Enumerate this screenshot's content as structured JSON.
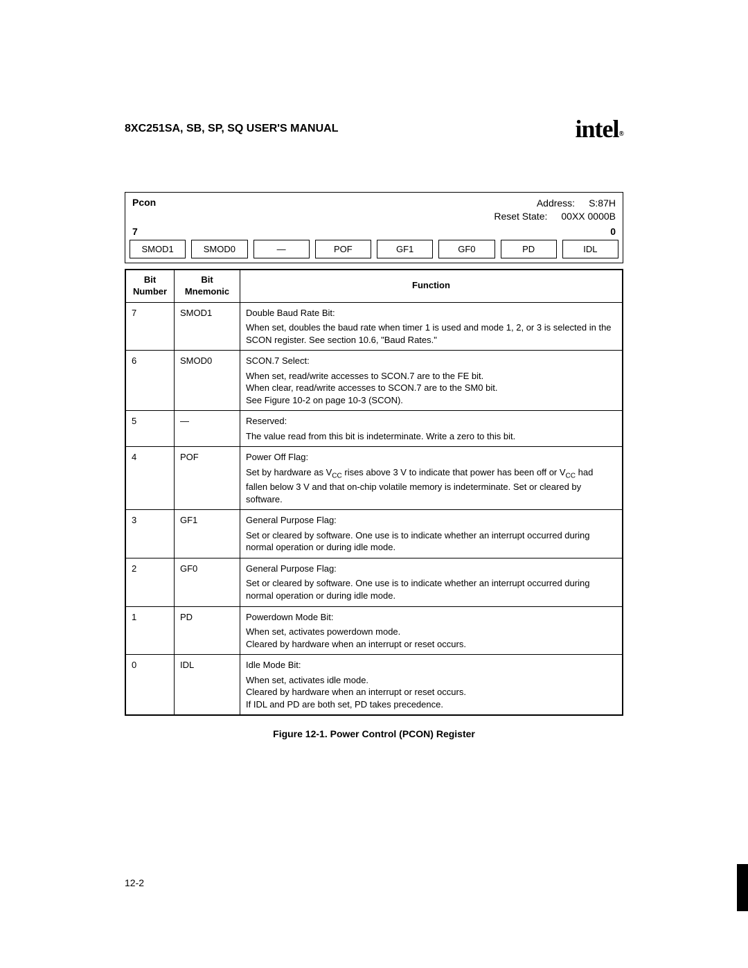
{
  "header": {
    "title": "8XC251SA, SB, SP, SQ USER'S MANUAL",
    "logo_text": "intel",
    "logo_suffix": "®"
  },
  "register": {
    "name": "Pcon",
    "address_label": "Address:",
    "address_value": "S:87H",
    "reset_label": "Reset State:",
    "reset_value": "00XX 0000B",
    "high_bit": "7",
    "low_bit": "0",
    "bits": [
      "SMOD1",
      "SMOD0",
      "—",
      "POF",
      "GF1",
      "GF0",
      "PD",
      "IDL"
    ]
  },
  "func_headers": {
    "col1": "Bit Number",
    "col2": "Bit Mnemonic",
    "col3": "Function"
  },
  "rows": [
    {
      "num": "7",
      "mnem": "SMOD1",
      "title": "Double Baud Rate Bit:",
      "body": "When set, doubles the baud rate when timer 1 is used and mode 1, 2, or 3 is selected in the SCON register. See section 10.6, \"Baud Rates.\""
    },
    {
      "num": "6",
      "mnem": "SMOD0",
      "title": "SCON.7 Select:",
      "body": "When set, read/write accesses to SCON.7 are to the FE bit.\nWhen clear, read/write accesses to SCON.7 are to the SM0 bit.\nSee Figure 10-2 on page 10-3 (SCON)."
    },
    {
      "num": "5",
      "mnem": "—",
      "title": "Reserved:",
      "body": "The value read from this bit is indeterminate. Write a zero to this bit."
    },
    {
      "num": "4",
      "mnem": "POF",
      "title": "Power Off Flag:",
      "body": "Set by hardware as V_CC rises above 3 V to indicate that power has been off or V_CC had fallen below 3 V and that on-chip volatile memory is indeterminate. Set or cleared by software."
    },
    {
      "num": "3",
      "mnem": "GF1",
      "title": "General Purpose Flag:",
      "body": "Set or cleared by software. One use is to indicate whether an interrupt occurred during normal operation or during idle mode."
    },
    {
      "num": "2",
      "mnem": "GF0",
      "title": "General Purpose Flag:",
      "body": "Set or cleared by software. One use is to indicate whether an interrupt occurred during normal operation or during idle mode."
    },
    {
      "num": "1",
      "mnem": "PD",
      "title": "Powerdown Mode Bit:",
      "body": "When set, activates powerdown mode.\nCleared by hardware when an interrupt or reset occurs."
    },
    {
      "num": "0",
      "mnem": "IDL",
      "title": "Idle Mode Bit:",
      "body": "When set, activates idle mode.\nCleared by hardware when an interrupt or reset occurs.\nIf IDL and PD are both set, PD takes precedence."
    }
  ],
  "caption": "Figure 12-1.  Power Control (PCON) Register",
  "page_number": "12-2"
}
